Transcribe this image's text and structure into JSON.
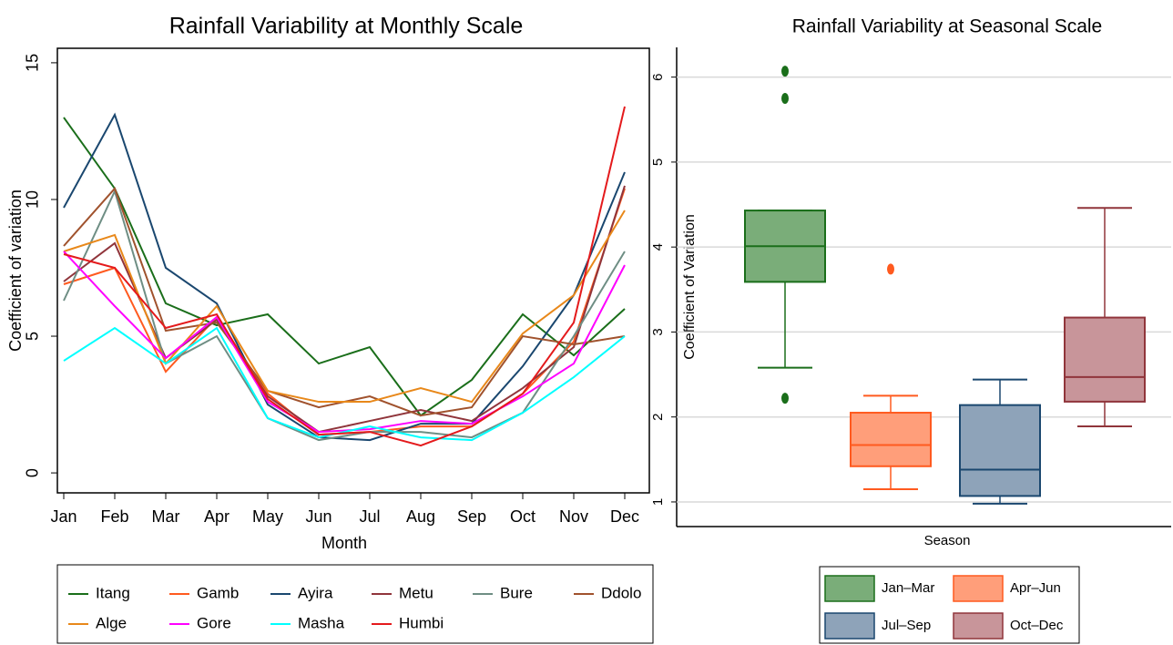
{
  "chart_data": [
    {
      "type": "line",
      "title": "Rainfall Variability at Monthly Scale",
      "x_label": "Month",
      "y_label": "Coefficient of variation",
      "categories": [
        "Jan",
        "Feb",
        "Mar",
        "Apr",
        "May",
        "Jun",
        "Jul",
        "Aug",
        "Sep",
        "Oct",
        "Nov",
        "Dec"
      ],
      "ylim": [
        -0.73,
        15.53
      ],
      "yticks": [
        0,
        5,
        10,
        15
      ],
      "grid": false,
      "legend": "bottom",
      "series": [
        {
          "name": "Itang",
          "color": "#1a6e1a",
          "values": [
            13.0,
            10.4,
            6.2,
            5.4,
            5.8,
            4.0,
            4.6,
            2.1,
            3.4,
            5.8,
            4.3,
            6.0
          ]
        },
        {
          "name": "Gamb",
          "color": "#ff5a1f",
          "values": [
            6.9,
            7.5,
            3.7,
            5.7,
            2.9,
            1.4,
            1.5,
            1.7,
            1.7,
            2.9,
            4.8,
            10.4
          ]
        },
        {
          "name": "Ayira",
          "color": "#1a476f",
          "values": [
            9.7,
            13.1,
            7.5,
            6.2,
            2.5,
            1.3,
            1.2,
            1.8,
            1.8,
            3.9,
            6.5,
            11.0
          ]
        },
        {
          "name": "Metu",
          "color": "#90353b",
          "values": [
            7.0,
            8.4,
            4.2,
            5.6,
            2.8,
            1.5,
            1.9,
            2.3,
            1.9,
            3.1,
            4.6,
            10.5
          ]
        },
        {
          "name": "Bure",
          "color": "#6e8e84",
          "values": [
            6.3,
            10.3,
            4.0,
            5.0,
            2.0,
            1.2,
            1.5,
            1.5,
            1.3,
            2.2,
            5.0,
            8.1
          ]
        },
        {
          "name": "Ddolo",
          "color": "#a0522d",
          "values": [
            8.3,
            10.4,
            5.2,
            5.5,
            3.0,
            2.4,
            2.8,
            2.1,
            2.4,
            5.0,
            4.7,
            5.0
          ]
        },
        {
          "name": "Alge",
          "color": "#e8881a",
          "values": [
            8.1,
            8.7,
            4.0,
            6.1,
            3.0,
            2.6,
            2.6,
            3.1,
            2.6,
            5.1,
            6.5,
            9.6
          ]
        },
        {
          "name": "Gore",
          "color": "#ff00ff",
          "values": [
            8.1,
            6.1,
            4.2,
            5.7,
            2.6,
            1.5,
            1.6,
            1.9,
            1.8,
            2.8,
            4.0,
            7.6
          ]
        },
        {
          "name": "Masha",
          "color": "#00ffff",
          "values": [
            4.1,
            5.3,
            4.0,
            5.3,
            2.0,
            1.3,
            1.7,
            1.3,
            1.2,
            2.2,
            3.5,
            5.0
          ]
        },
        {
          "name": "Humbi",
          "color": "#e41a1c",
          "values": [
            8.0,
            7.5,
            5.3,
            5.8,
            2.7,
            1.4,
            1.5,
            1.0,
            1.7,
            2.9,
            5.5,
            13.4
          ]
        }
      ]
    },
    {
      "type": "box",
      "title": "Rainfall Variability at Seasonal Scale",
      "x_label": "Season",
      "y_label": "Coefficient of Variation",
      "ylim": [
        0.71,
        6.35
      ],
      "yticks": [
        1,
        2,
        3,
        4,
        5,
        6
      ],
      "grid": true,
      "legend": "bottom",
      "series": [
        {
          "name": "Jan–Mar",
          "color": "#1a6e1a",
          "fill": "#7aad79",
          "min": 2.58,
          "q1": 3.59,
          "median": 4.01,
          "q3": 4.43,
          "max": 4.43,
          "outliers": [
            2.22,
            5.75,
            6.07
          ]
        },
        {
          "name": "Apr–Jun",
          "color": "#ff5a1f",
          "fill": "#ff9e7a",
          "min": 1.15,
          "q1": 1.42,
          "median": 1.67,
          "q3": 2.05,
          "max": 2.25,
          "outliers": [
            3.74
          ]
        },
        {
          "name": "Jul–Sep",
          "color": "#1a476f",
          "fill": "#8ea3b9",
          "min": 0.98,
          "q1": 1.07,
          "median": 1.38,
          "q3": 2.14,
          "max": 2.44,
          "outliers": []
        },
        {
          "name": "Oct–Dec",
          "color": "#90353b",
          "fill": "#c8959a",
          "min": 1.89,
          "q1": 2.18,
          "median": 2.47,
          "q3": 3.17,
          "max": 4.46,
          "outliers": []
        }
      ]
    }
  ]
}
